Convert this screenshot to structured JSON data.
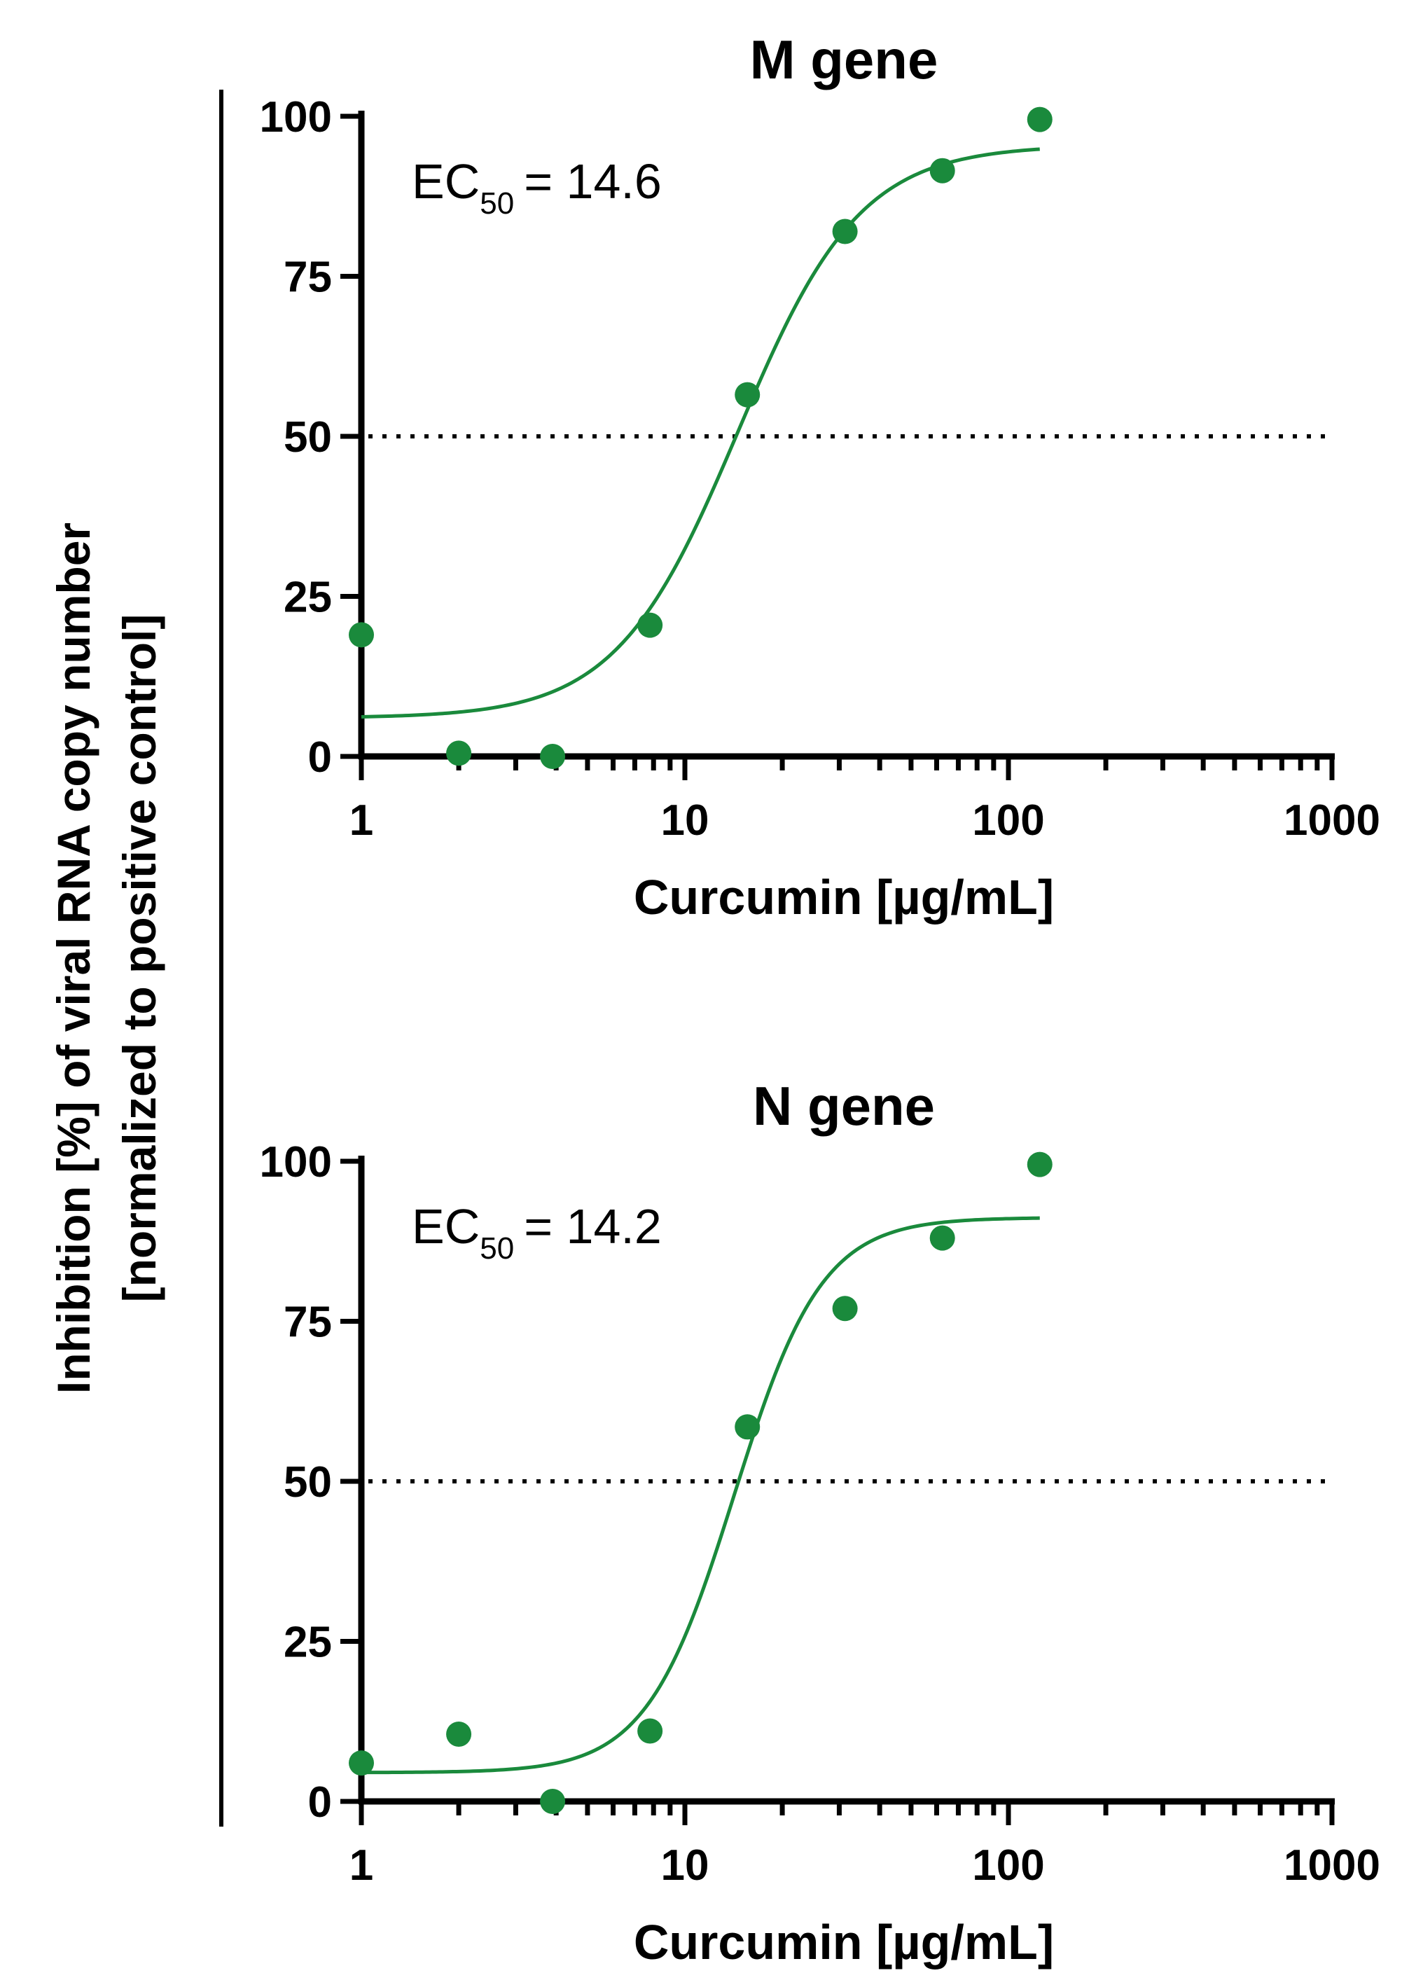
{
  "y_axis_label_line1": "Inhibition [%] of viral RNA copy number",
  "y_axis_label_line2": "[normalized to positive control]",
  "chart_data": [
    {
      "type": "scatter",
      "title": "M gene",
      "xlabel": "Curcumin [µg/mL]",
      "xscale": "log",
      "xlim": [
        1,
        1000
      ],
      "ylim": [
        0,
        100
      ],
      "x_ticks": [
        "1",
        "10",
        "100",
        "1000"
      ],
      "y_ticks": [
        "0",
        "25",
        "50",
        "75",
        "100"
      ],
      "reference_line_y": 50,
      "annotation": {
        "label": "EC",
        "subscript": "50",
        "value": "= 14.6"
      },
      "color": "#1a8a3c",
      "points": [
        {
          "x": 1,
          "y": 19
        },
        {
          "x": 2,
          "y": 0.5
        },
        {
          "x": 3.9,
          "y": 0
        },
        {
          "x": 7.8,
          "y": 20.5
        },
        {
          "x": 15.6,
          "y": 56.5
        },
        {
          "x": 31.25,
          "y": 82
        },
        {
          "x": 62.5,
          "y": 91.5
        },
        {
          "x": 125,
          "y": 99.5
        }
      ],
      "fit": {
        "model": "four-parameter logistic",
        "bottom": 6,
        "top": 95.5,
        "ec50": 14.6,
        "hill": 2.3,
        "x_range": [
          1,
          125
        ]
      }
    },
    {
      "type": "scatter",
      "title": "N gene",
      "xlabel": "Curcumin [µg/mL]",
      "xscale": "log",
      "xlim": [
        1,
        1000
      ],
      "ylim": [
        0,
        100
      ],
      "x_ticks": [
        "1",
        "10",
        "100",
        "1000"
      ],
      "y_ticks": [
        "0",
        "25",
        "50",
        "75",
        "100"
      ],
      "reference_line_y": 50,
      "annotation": {
        "label": "EC",
        "subscript": "50",
        "value": "= 14.2"
      },
      "color": "#1a8a3c",
      "points": [
        {
          "x": 1,
          "y": 6
        },
        {
          "x": 2,
          "y": 10.5
        },
        {
          "x": 3.9,
          "y": 0
        },
        {
          "x": 7.8,
          "y": 11
        },
        {
          "x": 15.6,
          "y": 58.5
        },
        {
          "x": 31.25,
          "y": 77
        },
        {
          "x": 62.5,
          "y": 88
        },
        {
          "x": 125,
          "y": 99.5
        }
      ],
      "fit": {
        "model": "four-parameter logistic",
        "bottom": 4.5,
        "top": 91.2,
        "ec50": 14.2,
        "hill": 3.2,
        "x_range": [
          1,
          125
        ]
      }
    }
  ]
}
